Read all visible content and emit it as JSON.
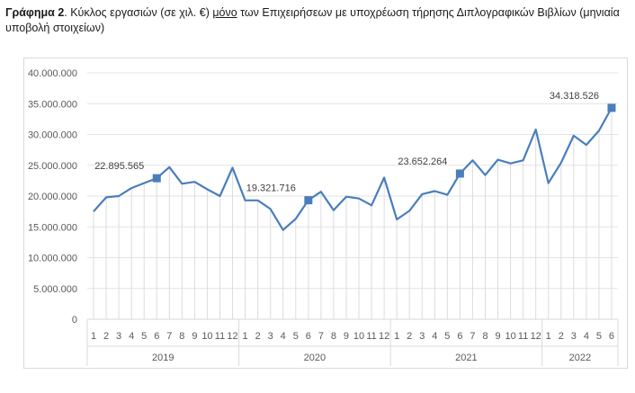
{
  "caption": {
    "label": "Γράφημα 2",
    "text_before": ". Κύκλος εργασιών (σε χιλ. €) ",
    "underlined": "μόνο",
    "text_after": " των Επιχειρήσεων με υποχρέωση τήρησης Διπλογραφικών Βιβλίων (μηνιαία υποβολή στοιχείων)"
  },
  "chart_data": {
    "type": "line",
    "title": "",
    "xlabel": "",
    "ylabel": "",
    "ylim": [
      0,
      40000000
    ],
    "yticks": [
      "0",
      "5.000.000",
      "10.000.000",
      "15.000.000",
      "20.000.000",
      "25.000.000",
      "30.000.000",
      "35.000.000",
      "40.000.000"
    ],
    "grid": true,
    "color": "#4a7ebb",
    "years": [
      {
        "label": "2019",
        "months": [
          "1",
          "2",
          "3",
          "4",
          "5",
          "6",
          "7",
          "8",
          "9",
          "10",
          "11",
          "12"
        ]
      },
      {
        "label": "2020",
        "months": [
          "1",
          "2",
          "3",
          "4",
          "5",
          "6",
          "7",
          "8",
          "9",
          "10",
          "11",
          "12"
        ]
      },
      {
        "label": "2021",
        "months": [
          "1",
          "2",
          "3",
          "4",
          "5",
          "6",
          "7",
          "8",
          "9",
          "10",
          "11",
          "12"
        ]
      },
      {
        "label": "2022",
        "months": [
          "1",
          "2",
          "3",
          "4",
          "5",
          "6"
        ]
      }
    ],
    "values": [
      17500000,
      19800000,
      20000000,
      21300000,
      22100000,
      22895565,
      24700000,
      22000000,
      22300000,
      21100000,
      20000000,
      24600000,
      19300000,
      19300000,
      17900000,
      14500000,
      16300000,
      19321716,
      20700000,
      17700000,
      19900000,
      19600000,
      18500000,
      23000000,
      16200000,
      17600000,
      20300000,
      20800000,
      20200000,
      23652264,
      25800000,
      23400000,
      25900000,
      25300000,
      25800000,
      30800000,
      22100000,
      25400000,
      29800000,
      28300000,
      30600000,
      34318526
    ],
    "highlighted": [
      {
        "index": 5,
        "label": "22.895.565"
      },
      {
        "index": 17,
        "label": "19.321.716"
      },
      {
        "index": 29,
        "label": "23.652.264"
      },
      {
        "index": 41,
        "label": "34.318.526"
      }
    ]
  }
}
